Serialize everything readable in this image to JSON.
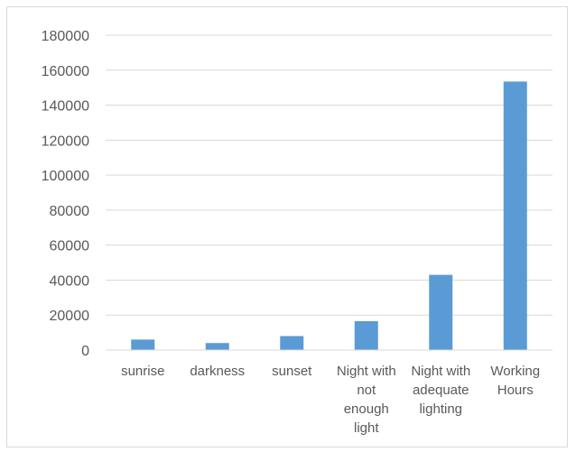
{
  "chart_data": {
    "type": "bar",
    "categories": [
      [
        "sunrise"
      ],
      [
        "darkness"
      ],
      [
        "sunset"
      ],
      [
        "Night with",
        "not",
        "enough",
        "light"
      ],
      [
        "Night with",
        "adequate",
        "lighting"
      ],
      [
        "Working",
        "Hours"
      ]
    ],
    "values": [
      6000,
      4000,
      8000,
      16500,
      43000,
      153500
    ],
    "ylim": [
      0,
      180000
    ],
    "yticks": [
      "0",
      "20000",
      "40000",
      "60000",
      "80000",
      "100000",
      "120000",
      "140000",
      "160000",
      "180000"
    ],
    "bar_color": "#5b9bd5",
    "grid": true,
    "legend": "none"
  }
}
